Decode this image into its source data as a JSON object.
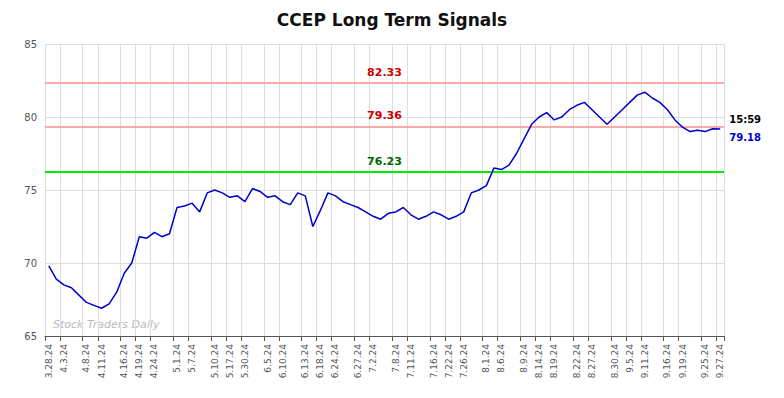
{
  "chart_data": {
    "type": "line",
    "title": "CCEP Long Term Signals",
    "color": "#0000cc",
    "categories": [
      "3.28.24",
      null,
      "4.3.24",
      null,
      null,
      "4.8.24",
      null,
      "4.11.24",
      null,
      null,
      "4.16.24",
      null,
      "4.19.24",
      null,
      "4.24.24",
      null,
      null,
      "5.1.24",
      null,
      "5.7.24",
      null,
      null,
      "5.10.24",
      null,
      "5.17.24",
      null,
      "5.30.24",
      null,
      null,
      "6.5.24",
      null,
      "6.10.24",
      null,
      null,
      "6.13.24",
      null,
      "6.18.24",
      null,
      "6.24.24",
      null,
      null,
      "6.27.24",
      null,
      "7.2.24",
      null,
      null,
      "7.8.24",
      null,
      "7.11.24",
      null,
      null,
      "7.16.24",
      null,
      "7.22.24",
      null,
      "7.26.24",
      null,
      null,
      "8.1.24",
      null,
      "8.6.24",
      null,
      null,
      "8.9.24",
      null,
      "8.14.24",
      null,
      "8.19.24",
      null,
      null,
      "8.22.24",
      null,
      "8.27.24",
      null,
      null,
      "8.30.24",
      null,
      "9.5.24",
      null,
      "9.11.24",
      null,
      null,
      "9.16.24",
      null,
      "9.19.24",
      null,
      null,
      "9.25.24",
      null,
      "9.27.24"
    ],
    "values": [
      69.8,
      68.9,
      68.5,
      68.3,
      67.8,
      67.3,
      67.1,
      66.9,
      67.2,
      68.0,
      69.3,
      70.0,
      71.8,
      71.7,
      72.1,
      71.8,
      72.0,
      73.8,
      73.9,
      74.1,
      73.5,
      74.8,
      75.0,
      74.8,
      74.5,
      74.6,
      74.2,
      75.1,
      74.9,
      74.5,
      74.6,
      74.2,
      74.0,
      74.8,
      74.6,
      72.5,
      73.6,
      74.8,
      74.6,
      74.2,
      74.0,
      73.8,
      73.5,
      73.2,
      73.0,
      73.4,
      73.5,
      73.8,
      73.3,
      73.0,
      73.2,
      73.5,
      73.3,
      73.0,
      73.2,
      73.5,
      74.8,
      75.0,
      75.3,
      76.5,
      76.4,
      76.7,
      77.5,
      78.5,
      79.5,
      80.0,
      80.3,
      79.8,
      80.0,
      80.5,
      80.8,
      81.0,
      80.5,
      80.0,
      79.5,
      80.0,
      80.5,
      81.0,
      81.5,
      81.7,
      81.3,
      81.0,
      80.5,
      79.8,
      79.3,
      79.0,
      79.1,
      79.0,
      79.2,
      79.18
    ],
    "ylim": [
      65,
      85
    ],
    "yticks": [
      65,
      70,
      75,
      80,
      85
    ],
    "grid": true,
    "hlines": [
      {
        "value": 82.33,
        "label": "82.33",
        "color": "#ffaaaa",
        "label_color": "#cc0000"
      },
      {
        "value": 79.36,
        "label": "79.36",
        "color": "#ffaaaa",
        "label_color": "#cc0000"
      },
      {
        "value": 76.23,
        "label": "76.23",
        "color": "#00ee00",
        "label_color": "#006600"
      }
    ],
    "annotations": [
      {
        "text": "15:59",
        "color": "#000000"
      },
      {
        "text": "79.18",
        "color": "#0000cc"
      }
    ],
    "watermark": {
      "text": "Stock Traders Daily",
      "color": "#bbbbbb"
    }
  }
}
